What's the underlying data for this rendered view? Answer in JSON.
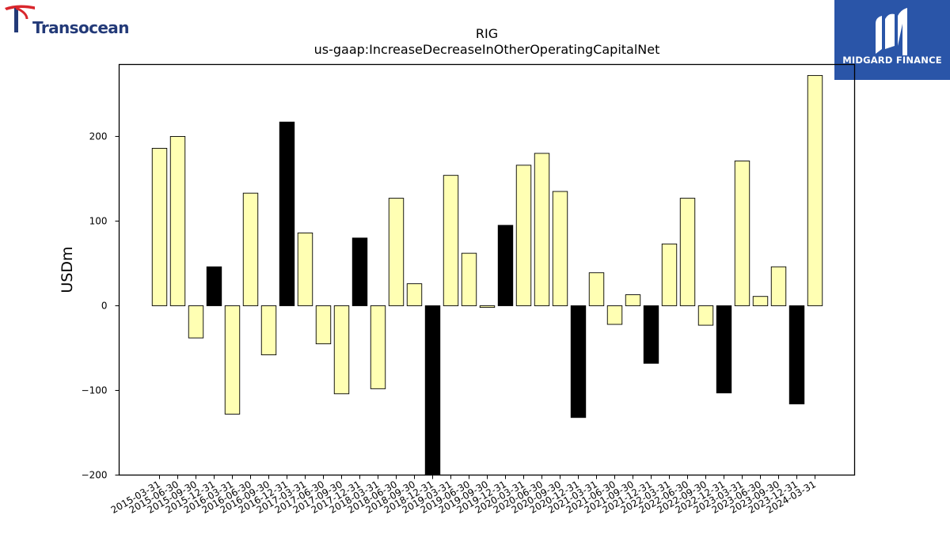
{
  "branding": {
    "left_logo_text": "Transocean",
    "left_logo_icon": "transocean-t-icon",
    "right_logo_text": "MIDGARD FINANCE",
    "right_logo_icon": "midgard-m-icon",
    "right_logo_bg": "#2a55a8"
  },
  "chart_data": {
    "type": "bar",
    "title": "RIG",
    "subtitle": "us-gaap:IncreaseDecreaseInOtherOperatingCapitalNet",
    "xlabel": "",
    "ylabel": "USDm",
    "ylim": [
      -200,
      285
    ],
    "yticks": [
      -200,
      -100,
      0,
      100,
      200
    ],
    "grid": false,
    "colors": {
      "default": "#ffffb3",
      "highlight": "#000000",
      "edge": "#000000"
    },
    "categories": [
      "2015-03-31",
      "2015-06-30",
      "2015-09-30",
      "2015-12-31",
      "2016-03-31",
      "2016-06-30",
      "2016-09-30",
      "2016-12-31",
      "2017-03-31",
      "2017-06-30",
      "2017-09-30",
      "2017-12-31",
      "2018-03-31",
      "2018-06-30",
      "2018-09-30",
      "2018-12-31",
      "2019-03-31",
      "2019-06-30",
      "2019-09-30",
      "2019-12-31",
      "2020-03-31",
      "2020-06-30",
      "2020-09-30",
      "2020-12-31",
      "2021-03-31",
      "2021-06-30",
      "2021-09-30",
      "2021-12-31",
      "2022-03-31",
      "2022-06-30",
      "2022-09-30",
      "2022-12-31",
      "2023-03-31",
      "2023-06-30",
      "2023-09-30",
      "2023-12-31",
      "2024-03-31"
    ],
    "values": [
      186,
      200,
      -38,
      46,
      -128,
      133,
      -58,
      217,
      86,
      -45,
      -104,
      80,
      -98,
      127,
      26,
      -215,
      154,
      62,
      -2,
      95,
      166,
      180,
      135,
      -132,
      39,
      -22,
      13,
      -68,
      73,
      127,
      -23,
      -103,
      171,
      11,
      46,
      -116,
      272
    ],
    "highlight": [
      false,
      false,
      false,
      true,
      false,
      false,
      false,
      true,
      false,
      false,
      false,
      true,
      false,
      false,
      false,
      true,
      false,
      false,
      false,
      true,
      false,
      false,
      false,
      true,
      false,
      false,
      false,
      true,
      false,
      false,
      false,
      true,
      false,
      false,
      false,
      true,
      false
    ]
  }
}
